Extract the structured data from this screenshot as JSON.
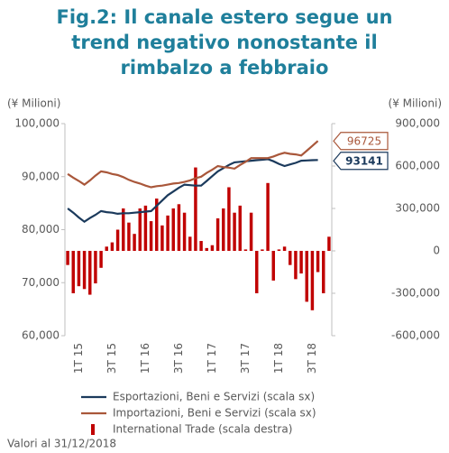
{
  "chart_data": {
    "type": "line-bar",
    "title": [
      "Fig.2: Il canale estero segue un",
      "trend negativo nonostante il",
      "rimbalzo a febbraio"
    ],
    "ylabel": "(¥ Milioni)",
    "y2label": "(¥ Milioni)",
    "note": "Valori al 31/12/2018",
    "categories": [
      null,
      null,
      "1T 15",
      null,
      null,
      null,
      null,
      null,
      "3T 15",
      null,
      null,
      null,
      null,
      null,
      "1T 16",
      null,
      null,
      null,
      null,
      null,
      "3T 16",
      null,
      null,
      null,
      null,
      null,
      "1T 17",
      null,
      null,
      null,
      null,
      null,
      "3T 17",
      null,
      null,
      null,
      null,
      null,
      "1T 18",
      null,
      null,
      null,
      null,
      null,
      "3T 18",
      null,
      null,
      null
    ],
    "ylim": [
      60000,
      100000
    ],
    "yticks": [
      {
        "value": 60000,
        "label": "60,000"
      },
      {
        "value": 70000,
        "label": "70,000"
      },
      {
        "value": 80000,
        "label": "80,000"
      },
      {
        "value": 90000,
        "label": "90,000"
      },
      {
        "value": 100000,
        "label": "100,000"
      }
    ],
    "y2lim": [
      -600000,
      900000
    ],
    "y2ticks": [
      {
        "value": -600000,
        "label": "-600,000"
      },
      {
        "value": -300000,
        "label": "-300,000"
      },
      0,
      {
        "value": 300000,
        "label": "300,000"
      },
      {
        "value": 600000,
        "label": "600,000"
      },
      {
        "value": 900000,
        "label": "900,000"
      }
    ],
    "series": [
      {
        "name": "Esportazioni, Beni e Servizi (scala sx)",
        "type": "line",
        "color": "#1b3a5c",
        "values": [
          84000,
          83200,
          82300,
          81500,
          82200,
          82800,
          83500,
          83300,
          83200,
          83000,
          83100,
          83100,
          83200,
          83300,
          83400,
          83500,
          84500,
          85500,
          86500,
          87200,
          87900,
          88500,
          88400,
          88300,
          88300,
          89200,
          90100,
          91000,
          91600,
          92200,
          92700,
          92800,
          92900,
          93000,
          93100,
          93200,
          93300,
          92900,
          92400,
          92000,
          92300,
          92600,
          93000,
          93050,
          93100,
          93141,
          null,
          null
        ]
      },
      {
        "name": "Importazioni, Beni e Servizi (scala sx)",
        "type": "line",
        "color": "#a9573a",
        "values": [
          90500,
          89800,
          89200,
          88500,
          89300,
          90200,
          91000,
          90800,
          90500,
          90300,
          89900,
          89400,
          89000,
          88700,
          88300,
          88000,
          88200,
          88300,
          88500,
          88700,
          88800,
          89000,
          89300,
          89700,
          90000,
          90700,
          91300,
          92000,
          91800,
          91700,
          91500,
          92200,
          92800,
          93500,
          93500,
          93500,
          93500,
          93800,
          94200,
          94500,
          94300,
          94200,
          94000,
          94900,
          95800,
          96725,
          null,
          null
        ]
      },
      {
        "name": "International Trade (scala destra)",
        "type": "bar",
        "axis": "y2",
        "color": "#c00000",
        "values": [
          -100000,
          -300000,
          -250000,
          -270000,
          -310000,
          -230000,
          -120000,
          30000,
          60000,
          150000,
          300000,
          200000,
          120000,
          300000,
          320000,
          210000,
          370000,
          180000,
          250000,
          300000,
          330000,
          270000,
          100000,
          590000,
          70000,
          20000,
          40000,
          230000,
          300000,
          450000,
          270000,
          320000,
          10000,
          270000,
          -300000,
          10000,
          480000,
          -210000,
          10000,
          30000,
          -100000,
          -200000,
          -160000,
          -360000,
          -420000,
          -150000,
          -300000,
          100000
        ]
      }
    ]
  }
}
